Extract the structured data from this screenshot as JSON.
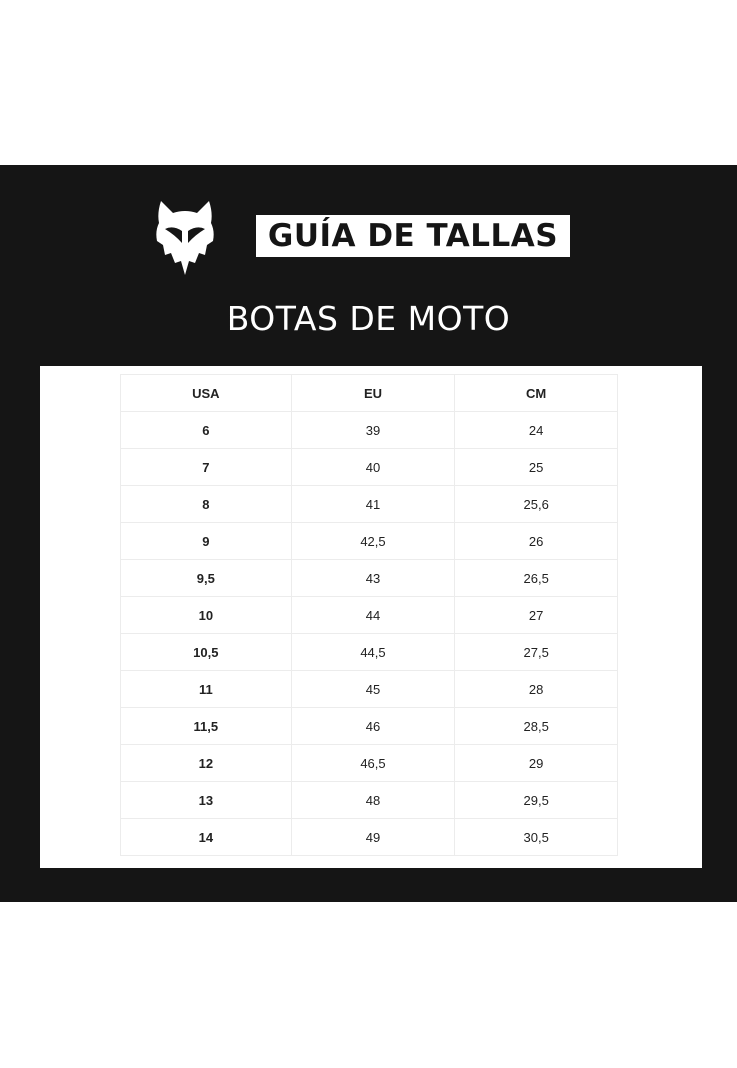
{
  "header": {
    "logo": "fox-head-logo",
    "title": "GUÍA DE TALLAS",
    "subtitle": "BOTAS DE MOTO"
  },
  "colors": {
    "background": "#151515",
    "text_light": "#ffffff",
    "table_border": "#ececec"
  },
  "table": {
    "columns": [
      "USA",
      "EU",
      "CM"
    ],
    "rows": [
      [
        "6",
        "39",
        "24"
      ],
      [
        "7",
        "40",
        "25"
      ],
      [
        "8",
        "41",
        "25,6"
      ],
      [
        "9",
        "42,5",
        "26"
      ],
      [
        "9,5",
        "43",
        "26,5"
      ],
      [
        "10",
        "44",
        "27"
      ],
      [
        "10,5",
        "44,5",
        "27,5"
      ],
      [
        "11",
        "45",
        "28"
      ],
      [
        "11,5",
        "46",
        "28,5"
      ],
      [
        "12",
        "46,5",
        "29"
      ],
      [
        "13",
        "48",
        "29,5"
      ],
      [
        "14",
        "49",
        "30,5"
      ]
    ]
  }
}
